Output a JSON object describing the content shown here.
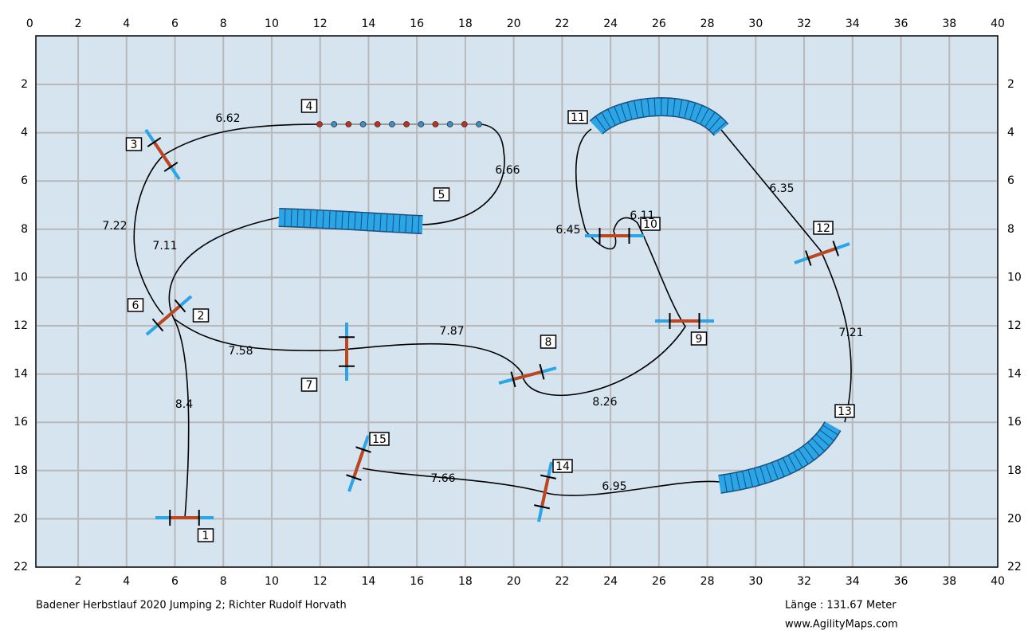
{
  "map": {
    "xlim": [
      0,
      40
    ],
    "ylim": [
      0,
      22
    ],
    "xticks": [
      0,
      2,
      4,
      6,
      8,
      10,
      12,
      14,
      16,
      18,
      20,
      22,
      24,
      26,
      28,
      30,
      32,
      34,
      36,
      38,
      40
    ],
    "yticks": [
      2,
      4,
      6,
      8,
      10,
      12,
      14,
      16,
      18,
      20,
      22
    ]
  },
  "obstacles": [
    "1",
    "2",
    "3",
    "4",
    "5",
    "6",
    "7",
    "8",
    "9",
    "10",
    "11",
    "12",
    "13",
    "14",
    "15"
  ],
  "distances": [
    "6.62",
    "7.22",
    "7.11",
    "6.66",
    "7.58",
    "8.4",
    "7.87",
    "8.26",
    "6.45",
    "6.11",
    "6.35",
    "7.21",
    "7.66",
    "6.95"
  ],
  "footer": {
    "title": "Badener Herbstlauf 2020 Jumping 2; Richter Rudolf Horvath",
    "length": "Länge : 131.67 Meter",
    "website": "www.AgilityMaps.com"
  }
}
